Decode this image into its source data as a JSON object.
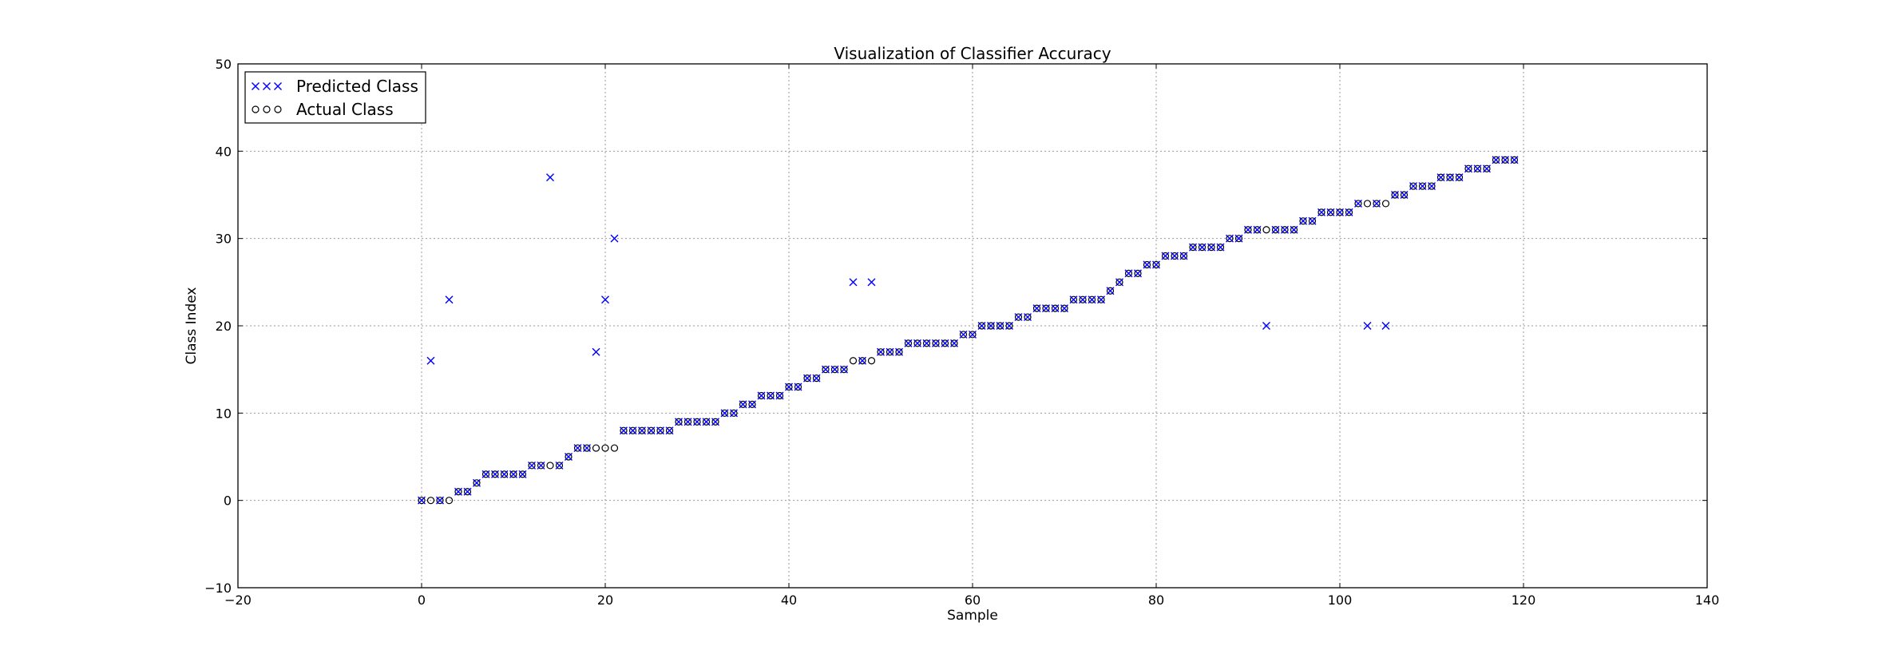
{
  "chart_data": {
    "type": "scatter",
    "title": "Visualization of Classifier Accuracy",
    "xlabel": "Sample",
    "ylabel": "Class Index",
    "xlim": [
      -20,
      140
    ],
    "ylim": [
      -10,
      50
    ],
    "xticks": [
      -20,
      0,
      20,
      40,
      60,
      80,
      100,
      120,
      140
    ],
    "yticks": [
      -10,
      0,
      10,
      20,
      30,
      40,
      50
    ],
    "grid": true,
    "legend_position": "top-left",
    "series": [
      {
        "name": "Predicted Class",
        "marker": "x",
        "color": "#0000ff",
        "values": [
          0,
          16,
          0,
          23,
          1,
          1,
          2,
          3,
          3,
          3,
          3,
          3,
          4,
          4,
          37,
          4,
          5,
          6,
          6,
          17,
          23,
          30,
          8,
          8,
          8,
          8,
          8,
          8,
          9,
          9,
          9,
          9,
          9,
          10,
          10,
          11,
          11,
          12,
          12,
          12,
          13,
          13,
          14,
          14,
          15,
          15,
          15,
          25,
          16,
          25,
          17,
          17,
          17,
          18,
          18,
          18,
          18,
          18,
          18,
          19,
          19,
          20,
          20,
          20,
          20,
          21,
          21,
          22,
          22,
          22,
          22,
          23,
          23,
          23,
          23,
          24,
          25,
          26,
          26,
          27,
          27,
          28,
          28,
          28,
          29,
          29,
          29,
          29,
          30,
          30,
          31,
          31,
          20,
          31,
          31,
          31,
          32,
          32,
          33,
          33,
          33,
          33,
          34,
          20,
          34,
          20,
          35,
          35,
          36,
          36,
          36,
          37,
          37,
          37,
          38,
          38,
          38,
          39,
          39,
          39
        ]
      },
      {
        "name": "Actual Class",
        "marker": "o",
        "color": "#000000",
        "values": [
          0,
          0,
          0,
          0,
          1,
          1,
          2,
          3,
          3,
          3,
          3,
          3,
          4,
          4,
          4,
          4,
          5,
          6,
          6,
          6,
          6,
          6,
          8,
          8,
          8,
          8,
          8,
          8,
          9,
          9,
          9,
          9,
          9,
          10,
          10,
          11,
          11,
          12,
          12,
          12,
          13,
          13,
          14,
          14,
          15,
          15,
          15,
          16,
          16,
          16,
          17,
          17,
          17,
          18,
          18,
          18,
          18,
          18,
          18,
          19,
          19,
          20,
          20,
          20,
          20,
          21,
          21,
          22,
          22,
          22,
          22,
          23,
          23,
          23,
          23,
          24,
          25,
          26,
          26,
          27,
          27,
          28,
          28,
          28,
          29,
          29,
          29,
          29,
          30,
          30,
          31,
          31,
          31,
          31,
          31,
          31,
          32,
          32,
          33,
          33,
          33,
          33,
          34,
          34,
          34,
          34,
          35,
          35,
          36,
          36,
          36,
          37,
          37,
          37,
          38,
          38,
          38,
          39,
          39,
          39
        ]
      }
    ]
  }
}
